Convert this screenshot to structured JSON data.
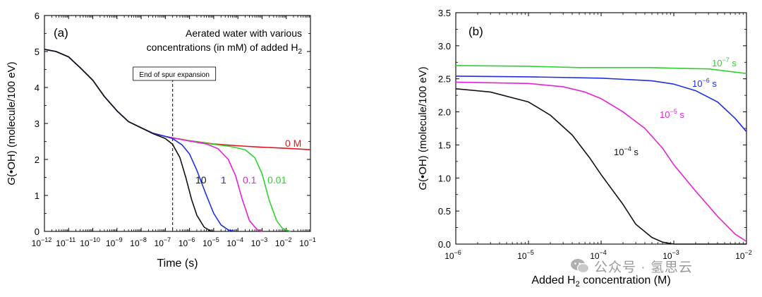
{
  "chart_data": [
    {
      "type": "line",
      "panel_label": "(a)",
      "xlabel": "Time (s)",
      "ylabel_italic": "G",
      "ylabel_rest": "(•OH) (molecule/100 eV)",
      "x_scale": "log",
      "xlim": [
        "1e-12",
        "1e-1"
      ],
      "ylim": [
        0,
        6
      ],
      "xticks": [
        {
          "base": "10",
          "exp": "−12"
        },
        {
          "base": "10",
          "exp": "−11"
        },
        {
          "base": "10",
          "exp": "−10"
        },
        {
          "base": "10",
          "exp": "−9"
        },
        {
          "base": "10",
          "exp": "−8"
        },
        {
          "base": "10",
          "exp": "−7"
        },
        {
          "base": "10",
          "exp": "−6"
        },
        {
          "base": "10",
          "exp": "−5"
        },
        {
          "base": "10",
          "exp": "−4"
        },
        {
          "base": "10",
          "exp": "−3"
        },
        {
          "base": "10",
          "exp": "−2"
        },
        {
          "base": "10",
          "exp": "−1"
        }
      ],
      "yticks": [
        "0",
        "1",
        "2",
        "3",
        "4",
        "5",
        "6"
      ],
      "legend_note": {
        "line1": "Aerated water with various",
        "line2": "concentrations (in mM) of added H",
        "sub": "2"
      },
      "vline": {
        "x": "2e-7",
        "label": "End of spur expansion"
      },
      "series": [
        {
          "name": "0 M",
          "color": "#e8131a",
          "points": [
            [
              "1e-12",
              5.06
            ],
            [
              "3e-12",
              5.0
            ],
            [
              "1e-11",
              4.85
            ],
            [
              "3e-11",
              4.55
            ],
            [
              "1e-10",
              4.2
            ],
            [
              "3e-10",
              3.75
            ],
            [
              "1e-9",
              3.35
            ],
            [
              "3e-9",
              3.05
            ],
            [
              "1e-8",
              2.88
            ],
            [
              "3e-8",
              2.73
            ],
            [
              "1e-7",
              2.64
            ],
            [
              "2e-7",
              2.6
            ],
            [
              "1e-6",
              2.52
            ],
            [
              "1e-5",
              2.43
            ],
            [
              "1e-4",
              2.38
            ],
            [
              "1e-3",
              2.34
            ],
            [
              "1e-2",
              2.31
            ],
            [
              "1e-1",
              2.27
            ]
          ]
        },
        {
          "name": "0.01",
          "color": "#2fd12f",
          "points": [
            [
              "1e-12",
              5.06
            ],
            [
              "3e-12",
              5.0
            ],
            [
              "1e-11",
              4.85
            ],
            [
              "3e-11",
              4.55
            ],
            [
              "1e-10",
              4.2
            ],
            [
              "3e-10",
              3.75
            ],
            [
              "1e-9",
              3.35
            ],
            [
              "3e-9",
              3.05
            ],
            [
              "1e-8",
              2.88
            ],
            [
              "3e-8",
              2.73
            ],
            [
              "1e-7",
              2.64
            ],
            [
              "2e-7",
              2.6
            ],
            [
              "1e-6",
              2.52
            ],
            [
              "1e-5",
              2.42
            ],
            [
              "5e-5",
              2.36
            ],
            [
              "2e-4",
              2.27
            ],
            [
              "5e-4",
              2.05
            ],
            [
              "1e-3",
              1.6
            ],
            [
              "2e-3",
              0.85
            ],
            [
              "4e-3",
              0.3
            ],
            [
              "7e-3",
              0.08
            ],
            [
              "1.5e-2",
              0.0
            ]
          ]
        },
        {
          "name": "0.1",
          "color": "#e620d6",
          "points": [
            [
              "1e-12",
              5.06
            ],
            [
              "3e-12",
              5.0
            ],
            [
              "1e-11",
              4.85
            ],
            [
              "3e-11",
              4.55
            ],
            [
              "1e-10",
              4.2
            ],
            [
              "3e-10",
              3.75
            ],
            [
              "1e-9",
              3.35
            ],
            [
              "3e-9",
              3.05
            ],
            [
              "1e-8",
              2.88
            ],
            [
              "3e-8",
              2.73
            ],
            [
              "1e-7",
              2.64
            ],
            [
              "2e-7",
              2.6
            ],
            [
              "1e-6",
              2.51
            ],
            [
              "5e-6",
              2.43
            ],
            [
              "1.5e-5",
              2.3
            ],
            [
              "4e-5",
              2.0
            ],
            [
              "8e-5",
              1.55
            ],
            [
              "1.5e-4",
              0.9
            ],
            [
              "3e-4",
              0.3
            ],
            [
              "6e-4",
              0.06
            ],
            [
              "1e-3",
              0.0
            ]
          ]
        },
        {
          "name": "1",
          "color": "#1f2fe0",
          "points": [
            [
              "1e-12",
              5.06
            ],
            [
              "3e-12",
              5.0
            ],
            [
              "1e-11",
              4.85
            ],
            [
              "3e-11",
              4.55
            ],
            [
              "1e-10",
              4.2
            ],
            [
              "3e-10",
              3.75
            ],
            [
              "1e-9",
              3.35
            ],
            [
              "3e-9",
              3.05
            ],
            [
              "1e-8",
              2.88
            ],
            [
              "3e-8",
              2.73
            ],
            [
              "1e-7",
              2.64
            ],
            [
              "2e-7",
              2.58
            ],
            [
              "5e-7",
              2.4
            ],
            [
              "1e-6",
              2.15
            ],
            [
              "2e-6",
              1.7
            ],
            [
              "5e-6",
              1.0
            ],
            [
              "1e-5",
              0.5
            ],
            [
              "2e-5",
              0.18
            ],
            [
              "4e-5",
              0.04
            ],
            [
              "8e-5",
              0.0
            ]
          ]
        },
        {
          "name": "10",
          "color": "#111111",
          "points": [
            [
              "1e-12",
              5.06
            ],
            [
              "3e-12",
              5.0
            ],
            [
              "1e-11",
              4.85
            ],
            [
              "3e-11",
              4.55
            ],
            [
              "1e-10",
              4.2
            ],
            [
              "3e-10",
              3.75
            ],
            [
              "1e-9",
              3.35
            ],
            [
              "3e-9",
              3.05
            ],
            [
              "1e-8",
              2.88
            ],
            [
              "3e-8",
              2.72
            ],
            [
              "1e-7",
              2.58
            ],
            [
              "2e-7",
              2.42
            ],
            [
              "4e-7",
              2.05
            ],
            [
              "7e-7",
              1.5
            ],
            [
              "1.2e-6",
              0.9
            ],
            [
              "2e-6",
              0.45
            ],
            [
              "4e-6",
              0.12
            ],
            [
              "7e-6",
              0.02
            ],
            [
              "1e-5",
              0.0
            ]
          ]
        }
      ]
    },
    {
      "type": "line",
      "panel_label": "(b)",
      "xlabel_pre": "Added H",
      "xlabel_sub": "2",
      "xlabel_post": " concentration (M)",
      "ylabel_italic": "G",
      "ylabel_rest": "(•OH) (molecule/100 eV)",
      "x_scale": "log",
      "xlim": [
        "1e-6",
        "1e-2"
      ],
      "ylim": [
        0,
        3.5
      ],
      "xticks": [
        {
          "base": "10",
          "exp": "−6"
        },
        {
          "base": "10",
          "exp": "−5"
        },
        {
          "base": "10",
          "exp": "−4"
        },
        {
          "base": "10",
          "exp": "−3"
        },
        {
          "base": "10",
          "exp": "−2"
        }
      ],
      "yticks": [
        "0.0",
        "0.5",
        "1.0",
        "1.5",
        "2.0",
        "2.5",
        "3.0",
        "3.5"
      ],
      "series": [
        {
          "base": "10",
          "exp": "−7",
          "unit": " s",
          "color": "#2fd12f",
          "points": [
            [
              "1e-6",
              2.7
            ],
            [
              "1e-5",
              2.69
            ],
            [
              "5e-5",
              2.67
            ],
            [
              "1e-4",
              2.67
            ],
            [
              "5e-4",
              2.67
            ],
            [
              "1e-3",
              2.66
            ],
            [
              "3e-3",
              2.65
            ],
            [
              "1e-2",
              2.58
            ]
          ]
        },
        {
          "base": "10",
          "exp": "−6",
          "unit": " s",
          "color": "#1f2fe0",
          "points": [
            [
              "1e-6",
              2.54
            ],
            [
              "1e-5",
              2.53
            ],
            [
              "1e-4",
              2.51
            ],
            [
              "5e-4",
              2.47
            ],
            [
              "1e-3",
              2.42
            ],
            [
              "2e-3",
              2.32
            ],
            [
              "4e-3",
              2.15
            ],
            [
              "7e-3",
              1.9
            ],
            [
              "1e-2",
              1.7
            ]
          ]
        },
        {
          "base": "10",
          "exp": "−5",
          "unit": " s",
          "color": "#e620d6",
          "points": [
            [
              "1e-6",
              2.45
            ],
            [
              "1e-5",
              2.43
            ],
            [
              "3e-5",
              2.38
            ],
            [
              "6e-5",
              2.3
            ],
            [
              "1e-4",
              2.2
            ],
            [
              "2e-4",
              2.0
            ],
            [
              "4e-4",
              1.75
            ],
            [
              "7e-4",
              1.45
            ],
            [
              "1e-3",
              1.2
            ],
            [
              "2e-3",
              0.8
            ],
            [
              "4e-3",
              0.42
            ],
            [
              "7e-3",
              0.15
            ],
            [
              "1e-2",
              0.04
            ]
          ]
        },
        {
          "base": "10",
          "exp": "−4",
          "unit": " s",
          "color": "#111111",
          "points": [
            [
              "1e-6",
              2.35
            ],
            [
              "3e-6",
              2.3
            ],
            [
              "1e-5",
              2.15
            ],
            [
              "2e-5",
              1.95
            ],
            [
              "4e-5",
              1.65
            ],
            [
              "7e-5",
              1.3
            ],
            [
              "1e-4",
              1.05
            ],
            [
              "2e-4",
              0.6
            ],
            [
              "3e-4",
              0.3
            ],
            [
              "5e-4",
              0.1
            ],
            [
              "7e-4",
              0.03
            ],
            [
              "1e-3",
              0.0
            ],
            [
              "1e-2",
              0.0
            ]
          ]
        }
      ]
    }
  ],
  "watermark": "公众号 · 氢思云"
}
